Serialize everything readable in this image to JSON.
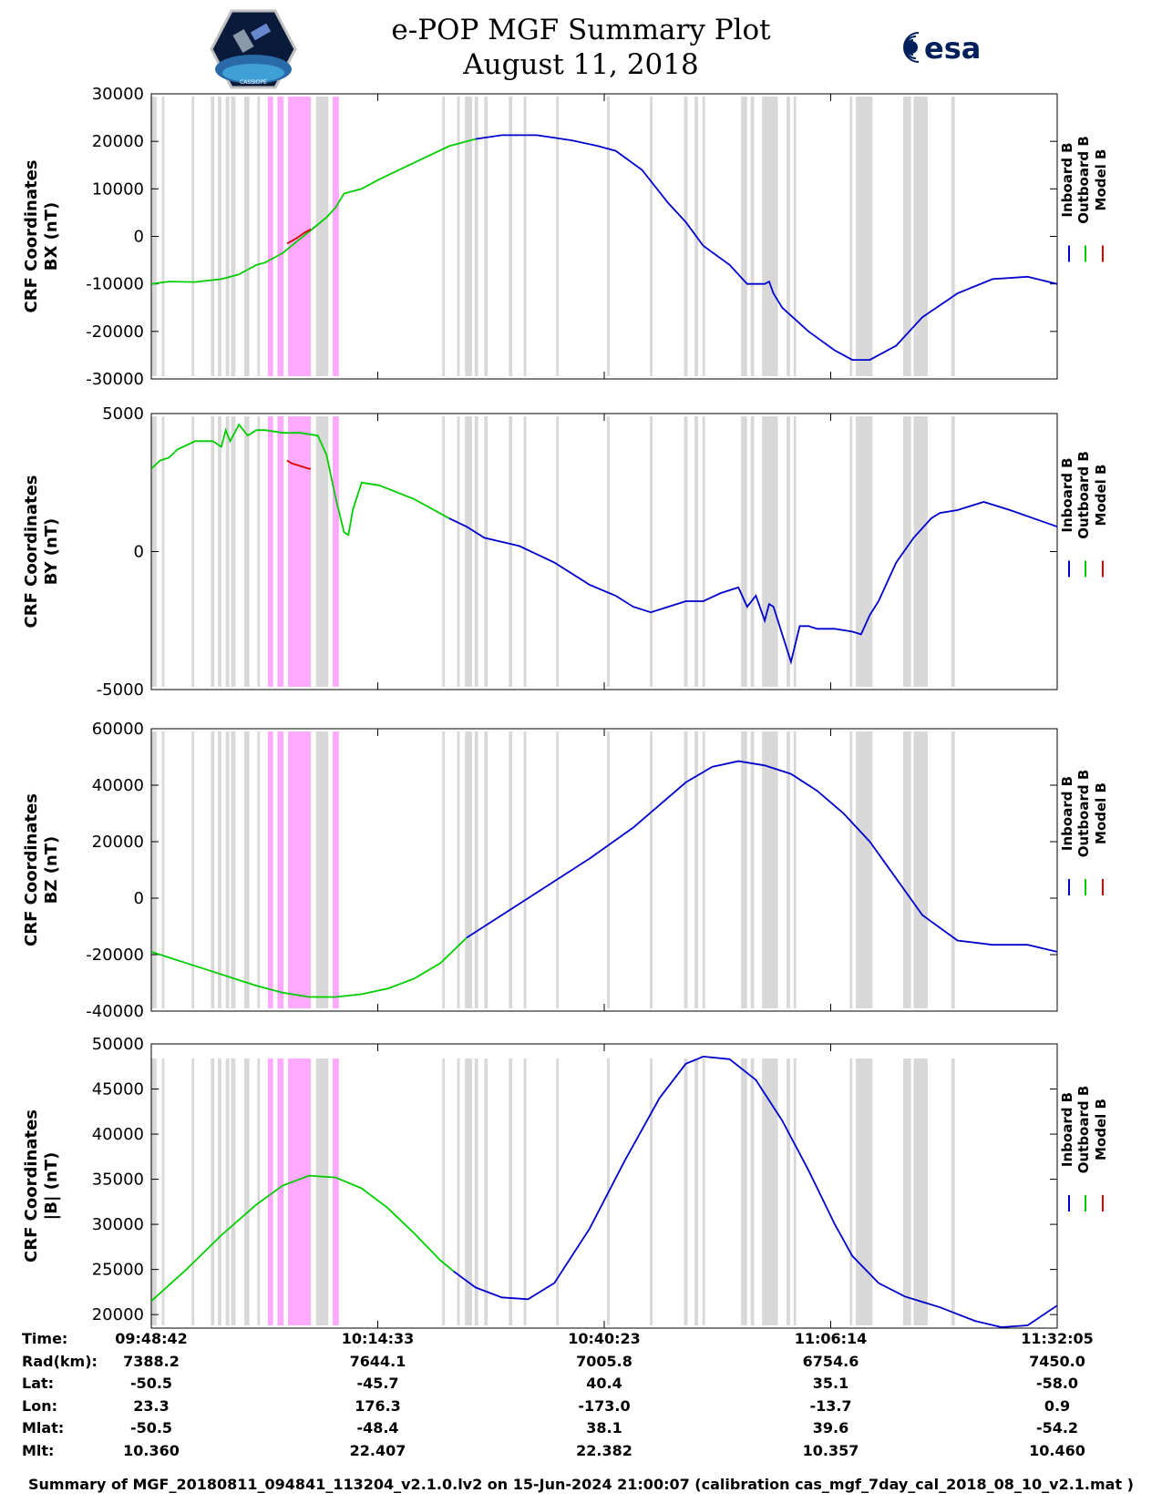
{
  "header": {
    "title_line1": "e-POP MGF Summary Plot",
    "title_line2": "August 11, 2018",
    "logo_left_text": "CASSIOPE",
    "logo_right_text": "esa"
  },
  "colors": {
    "inboard": "#0000cc",
    "outboard": "#00cc00",
    "model": "#dd0000",
    "shade_gray": "#d8d8d8",
    "shade_magenta": "#ffaaff"
  },
  "legend": [
    "Inboard B",
    "Outboard B",
    "Model B"
  ],
  "shading": {
    "time_range_min": [
      0,
      103.38
    ],
    "gray_spans_min": [
      [
        0,
        0.6
      ],
      [
        1.2,
        1.5
      ],
      [
        4.6,
        4.9
      ],
      [
        6.8,
        7.2
      ],
      [
        7.6,
        8.0
      ],
      [
        8.5,
        8.9
      ],
      [
        9.1,
        9.6
      ],
      [
        10.6,
        11.2
      ],
      [
        12.1,
        12.4
      ],
      [
        16.7,
        17.2
      ],
      [
        17.6,
        18.1
      ],
      [
        18.8,
        20.2
      ],
      [
        20.7,
        21.4
      ],
      [
        33.2,
        33.5
      ],
      [
        34.9,
        35.2
      ],
      [
        35.8,
        36.6
      ],
      [
        36.9,
        37.3
      ],
      [
        38.0,
        38.4
      ],
      [
        40.8,
        41.2
      ],
      [
        42.5,
        42.8
      ],
      [
        46.2,
        46.5
      ],
      [
        52.0,
        52.3
      ],
      [
        56.9,
        57.2
      ],
      [
        60.8,
        61.2
      ],
      [
        62.0,
        62.4
      ],
      [
        62.9,
        63.2
      ],
      [
        67.3,
        68.0
      ],
      [
        68.4,
        68.8
      ],
      [
        69.7,
        71.5
      ],
      [
        72.5,
        72.9
      ],
      [
        73.3,
        73.6
      ],
      [
        79.7,
        80.0
      ],
      [
        80.4,
        82.3
      ],
      [
        85.8,
        86.7
      ],
      [
        87.0,
        88.6
      ],
      [
        91.3,
        91.7
      ]
    ],
    "magenta_spans_min": [
      [
        13.3,
        13.9
      ],
      [
        14.4,
        15.1
      ],
      [
        15.6,
        18.2
      ],
      [
        20.7,
        21.4
      ]
    ]
  },
  "chart_data": [
    {
      "type": "line",
      "ylabel": "CRF Coordinates\nBX (nT)",
      "ylim": [
        -30000,
        30000
      ],
      "yticks": [
        -30000,
        -20000,
        -10000,
        0,
        10000,
        20000,
        30000
      ],
      "xticks": [
        "09:48:42",
        "10:14:33",
        "10:40:23",
        "11:06:14",
        "11:32:05"
      ],
      "series": [
        {
          "name": "Outboard B",
          "color_key": "outboard",
          "x": [
            0,
            2,
            5,
            8,
            10,
            11,
            12,
            13,
            14,
            15,
            16,
            17,
            18,
            19,
            20,
            21,
            22,
            23,
            24,
            26,
            30,
            34,
            37
          ],
          "y": [
            -10000,
            -9500,
            -9600,
            -9000,
            -8000,
            -7000,
            -6000,
            -5500,
            -4500,
            -3500,
            -2000,
            -500,
            1000,
            2500,
            4000,
            6000,
            9000,
            9500,
            10000,
            12000,
            15500,
            19000,
            20500
          ]
        },
        {
          "name": "Model B",
          "color_key": "model",
          "x": [
            15.5,
            16.5,
            17.5,
            18.2
          ],
          "y": [
            -1500,
            -500,
            800,
            1500
          ]
        },
        {
          "name": "Inboard B",
          "color_key": "inboard",
          "x": [
            37,
            40,
            44,
            48,
            51,
            53,
            56,
            59,
            61,
            63,
            66,
            68,
            70,
            70.5,
            71,
            72,
            75,
            78,
            80,
            82,
            85,
            88,
            92,
            96,
            100,
            103.38
          ],
          "y": [
            20500,
            21300,
            21300,
            20200,
            19000,
            18000,
            14000,
            7000,
            3000,
            -2000,
            -6000,
            -10000,
            -10000,
            -9500,
            -12000,
            -15000,
            -20000,
            -24000,
            -26000,
            -26000,
            -23000,
            -17000,
            -12000,
            -9000,
            -8500,
            -10000
          ]
        }
      ]
    },
    {
      "type": "line",
      "ylabel": "CRF Coordinates\nBY (nT)",
      "ylim": [
        -5000,
        5000
      ],
      "yticks": [
        -5000,
        0,
        5000
      ],
      "xticks": [
        "09:48:42",
        "10:14:33",
        "10:40:23",
        "11:06:14",
        "11:32:05"
      ],
      "series": [
        {
          "name": "Outboard B",
          "color_key": "outboard",
          "x": [
            0,
            1,
            2,
            3,
            5,
            7,
            8,
            8.5,
            9,
            10,
            11,
            12,
            13,
            15,
            17,
            19,
            20,
            21,
            22,
            22.5,
            23,
            24,
            26,
            30,
            34
          ],
          "y": [
            3000,
            3300,
            3400,
            3700,
            4000,
            4000,
            3800,
            4400,
            4000,
            4600,
            4200,
            4400,
            4400,
            4300,
            4300,
            4200,
            3500,
            2000,
            700,
            600,
            1500,
            2500,
            2400,
            1900,
            1200
          ]
        },
        {
          "name": "Model B",
          "color_key": "model",
          "x": [
            15.5,
            16,
            17,
            18,
            18.2
          ],
          "y": [
            3300,
            3200,
            3100,
            3000,
            3000
          ]
        },
        {
          "name": "Inboard B",
          "color_key": "inboard",
          "x": [
            34,
            36,
            38,
            42,
            46,
            50,
            53,
            55,
            57,
            59,
            61,
            63,
            65,
            67,
            68,
            69,
            70,
            70.5,
            71,
            72,
            73,
            74,
            75,
            76,
            78,
            80,
            81,
            82,
            83,
            85,
            87,
            89,
            90,
            92,
            95,
            98,
            103.38
          ],
          "y": [
            1200,
            900,
            500,
            200,
            -400,
            -1200,
            -1600,
            -2000,
            -2200,
            -2000,
            -1800,
            -1800,
            -1500,
            -1300,
            -2000,
            -1600,
            -2500,
            -1900,
            -2000,
            -3000,
            -4000,
            -2700,
            -2700,
            -2800,
            -2800,
            -2900,
            -3000,
            -2300,
            -1800,
            -400,
            500,
            1200,
            1400,
            1500,
            1800,
            1500,
            900
          ]
        }
      ]
    },
    {
      "type": "line",
      "ylabel": "CRF Coordinates\nBZ (nT)",
      "ylim": [
        -40000,
        60000
      ],
      "yticks": [
        -40000,
        -20000,
        0,
        20000,
        40000,
        60000
      ],
      "xticks": [
        "09:48:42",
        "10:14:33",
        "10:40:23",
        "11:06:14",
        "11:32:05"
      ],
      "series": [
        {
          "name": "Outboard B",
          "color_key": "outboard",
          "x": [
            0,
            4,
            8,
            12,
            15,
            18,
            21,
            24,
            27,
            30,
            33,
            36
          ],
          "y": [
            -19000,
            -23000,
            -27000,
            -31000,
            -33500,
            -35000,
            -35000,
            -34000,
            -32000,
            -28500,
            -23000,
            -14000
          ]
        },
        {
          "name": "Inboard B",
          "color_key": "inboard",
          "x": [
            36,
            40,
            45,
            50,
            55,
            58,
            61,
            64,
            67,
            70,
            73,
            76,
            79,
            82,
            85,
            88,
            92,
            96,
            100,
            103.38
          ],
          "y": [
            -14000,
            -6000,
            4000,
            14000,
            25000,
            33000,
            41000,
            46500,
            48500,
            47000,
            44000,
            38000,
            30000,
            20000,
            7000,
            -6000,
            -15000,
            -16500,
            -16500,
            -19000
          ]
        }
      ]
    },
    {
      "type": "line",
      "ylabel": "CRF Coordinates\n|B| (nT)",
      "ylim": [
        18500,
        50000
      ],
      "yticks": [
        20000,
        25000,
        30000,
        35000,
        40000,
        45000,
        50000
      ],
      "xticks": [
        "09:48:42",
        "10:14:33",
        "10:40:23",
        "11:06:14",
        "11:32:05"
      ],
      "series": [
        {
          "name": "Outboard B",
          "color_key": "outboard",
          "x": [
            0,
            4,
            8,
            12,
            15,
            18,
            21,
            24,
            27,
            30,
            33,
            34.5
          ],
          "y": [
            21500,
            25000,
            28800,
            32200,
            34300,
            35400,
            35200,
            34000,
            31800,
            29000,
            26000,
            24800
          ]
        },
        {
          "name": "Inboard B",
          "color_key": "inboard",
          "x": [
            34.5,
            37,
            40,
            43,
            46,
            50,
            54,
            58,
            61,
            63,
            66,
            69,
            72,
            75,
            78,
            80,
            83,
            86,
            90,
            94,
            97,
            100,
            103.38
          ],
          "y": [
            24800,
            23000,
            21900,
            21700,
            23500,
            29500,
            37000,
            44000,
            47800,
            48600,
            48300,
            46000,
            41500,
            36000,
            30000,
            26500,
            23500,
            22000,
            20800,
            19300,
            18600,
            18800,
            21000
          ]
        }
      ]
    }
  ],
  "info": {
    "labels": [
      "Time:",
      "Rad(km):",
      "Lat:",
      "Lon:",
      "Mlat:",
      "Mlt:"
    ],
    "columns": [
      [
        "09:48:42",
        "7388.2",
        "-50.5",
        "23.3",
        "-50.5",
        "10.360"
      ],
      [
        "10:14:33",
        "7644.1",
        "-45.7",
        "176.3",
        "-48.4",
        "22.407"
      ],
      [
        "10:40:23",
        "7005.8",
        "40.4",
        "-173.0",
        "38.1",
        "22.382"
      ],
      [
        "11:06:14",
        "6754.6",
        "35.1",
        "-13.7",
        "39.6",
        "10.357"
      ],
      [
        "11:32:05",
        "7450.0",
        "-58.0",
        "0.9",
        "-54.2",
        "10.460"
      ]
    ]
  },
  "footer": "Summary of MGF_20180811_094841_113204_v2.1.0.lv2 on 15-Jun-2024 21:00:07 (calibration cas_mgf_7day_cal_2018_08_10_v2.1.mat )"
}
